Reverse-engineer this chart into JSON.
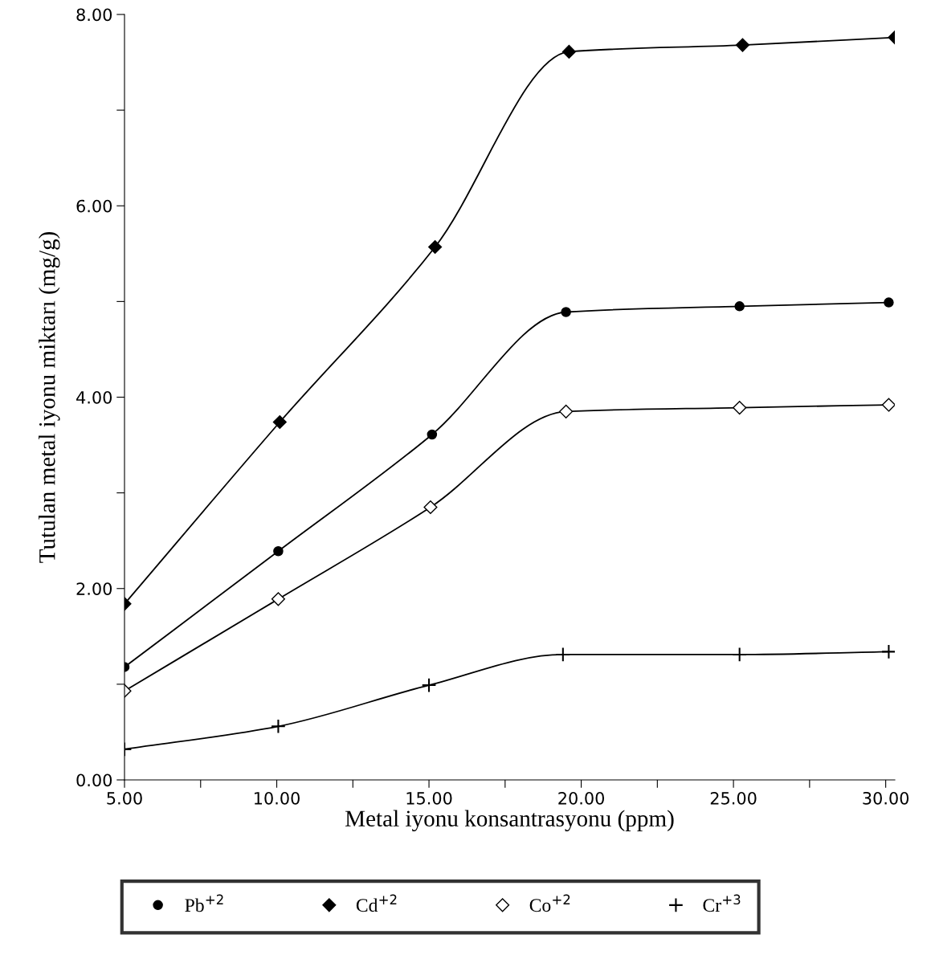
{
  "chart_data": {
    "type": "line",
    "xlabel": "Metal iyonu konsantrasyonu (ppm)",
    "ylabel": "Tutulan metal iyonu miktarı (mg/g)",
    "xlim": [
      5,
      30.3
    ],
    "ylim": [
      0,
      8
    ],
    "xticks": [
      {
        "value": 5,
        "label": "5.00"
      },
      {
        "value": 7.5,
        "label": null
      },
      {
        "value": 10,
        "label": "10.00"
      },
      {
        "value": 12.5,
        "label": null
      },
      {
        "value": 15,
        "label": "15.00"
      },
      {
        "value": 17.5,
        "label": null
      },
      {
        "value": 20,
        "label": "20.00"
      },
      {
        "value": 22.5,
        "label": null
      },
      {
        "value": 25,
        "label": "25.00"
      },
      {
        "value": 27.5,
        "label": null
      },
      {
        "value": 30,
        "label": "30.00"
      }
    ],
    "yticks": [
      {
        "value": 0,
        "label": "0.00"
      },
      {
        "value": 1,
        "label": null
      },
      {
        "value": 2,
        "label": "2.00"
      },
      {
        "value": 3,
        "label": null
      },
      {
        "value": 4,
        "label": "4.00"
      },
      {
        "value": 5,
        "label": null
      },
      {
        "value": 6,
        "label": "6.00"
      },
      {
        "value": 7,
        "label": null
      },
      {
        "value": 8,
        "label": "8.00"
      }
    ],
    "grid": false,
    "legend": "bottom",
    "series": [
      {
        "name": "Pb$^{+2}$",
        "color": "#000000",
        "marker": "circle",
        "x": [
          5,
          10.05,
          15.1,
          19.5,
          25.2,
          30.1
        ],
        "values": [
          1.18,
          2.39,
          3.61,
          4.89,
          4.95,
          4.99
        ]
      },
      {
        "name": "Cd$^{+2}$",
        "color": "#000000",
        "marker": "diamond",
        "x": [
          5,
          10.1,
          15.2,
          19.6,
          25.3,
          30.3
        ],
        "values": [
          1.84,
          3.74,
          5.57,
          7.61,
          7.68,
          7.76
        ]
      },
      {
        "name": "Co$^{+2}$",
        "color": "#000000",
        "marker": "diamond",
        "x": [
          5,
          10.05,
          15.05,
          19.5,
          25.2,
          30.1
        ],
        "values": [
          0.93,
          1.89,
          2.85,
          3.85,
          3.89,
          3.92
        ]
      },
      {
        "name": "Cr$^{+3}$",
        "color": "#000000",
        "marker": "cross",
        "x": [
          5,
          10.05,
          15.0,
          19.4,
          25.2,
          30.1
        ],
        "values": [
          0.32,
          0.56,
          0.99,
          1.31,
          1.31,
          1.34
        ]
      }
    ]
  }
}
